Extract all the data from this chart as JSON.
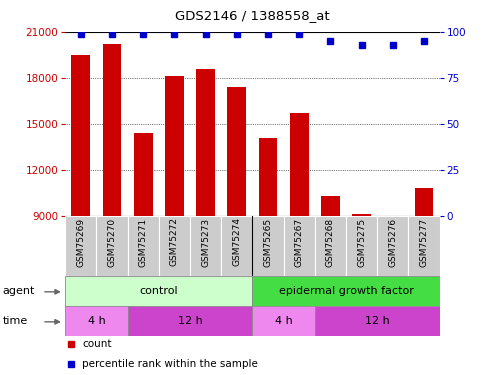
{
  "title": "GDS2146 / 1388558_at",
  "samples": [
    "GSM75269",
    "GSM75270",
    "GSM75271",
    "GSM75272",
    "GSM75273",
    "GSM75274",
    "GSM75265",
    "GSM75267",
    "GSM75268",
    "GSM75275",
    "GSM75276",
    "GSM75277"
  ],
  "counts": [
    19500,
    20200,
    14400,
    18100,
    18600,
    17400,
    14100,
    15700,
    10300,
    9100,
    9000,
    10800
  ],
  "percentile": [
    99,
    99,
    99,
    99,
    99,
    99,
    99,
    99,
    95,
    93,
    93,
    95
  ],
  "ylim_left": [
    9000,
    21000
  ],
  "ylim_right": [
    0,
    100
  ],
  "yticks_left": [
    9000,
    12000,
    15000,
    18000,
    21000
  ],
  "yticks_right": [
    0,
    25,
    50,
    75,
    100
  ],
  "bar_color": "#cc0000",
  "dot_color": "#0000cc",
  "agent_control_label": "control",
  "agent_egf_label": "epidermal growth factor",
  "agent_control_color": "#ccffcc",
  "agent_egf_color": "#44dd44",
  "time_colors": [
    "#ee88ee",
    "#cc44cc"
  ],
  "time_groups": [
    [
      0,
      2,
      "4 h"
    ],
    [
      2,
      6,
      "12 h"
    ],
    [
      6,
      8,
      "4 h"
    ],
    [
      8,
      12,
      "12 h"
    ]
  ],
  "ytick_color": "#cc0000",
  "right_ytick_color": "#0000cc",
  "bg_xtick": "#cccccc",
  "legend_items": [
    {
      "color": "#cc0000",
      "label": "count"
    },
    {
      "color": "#0000cc",
      "label": "percentile rank within the sample"
    }
  ]
}
